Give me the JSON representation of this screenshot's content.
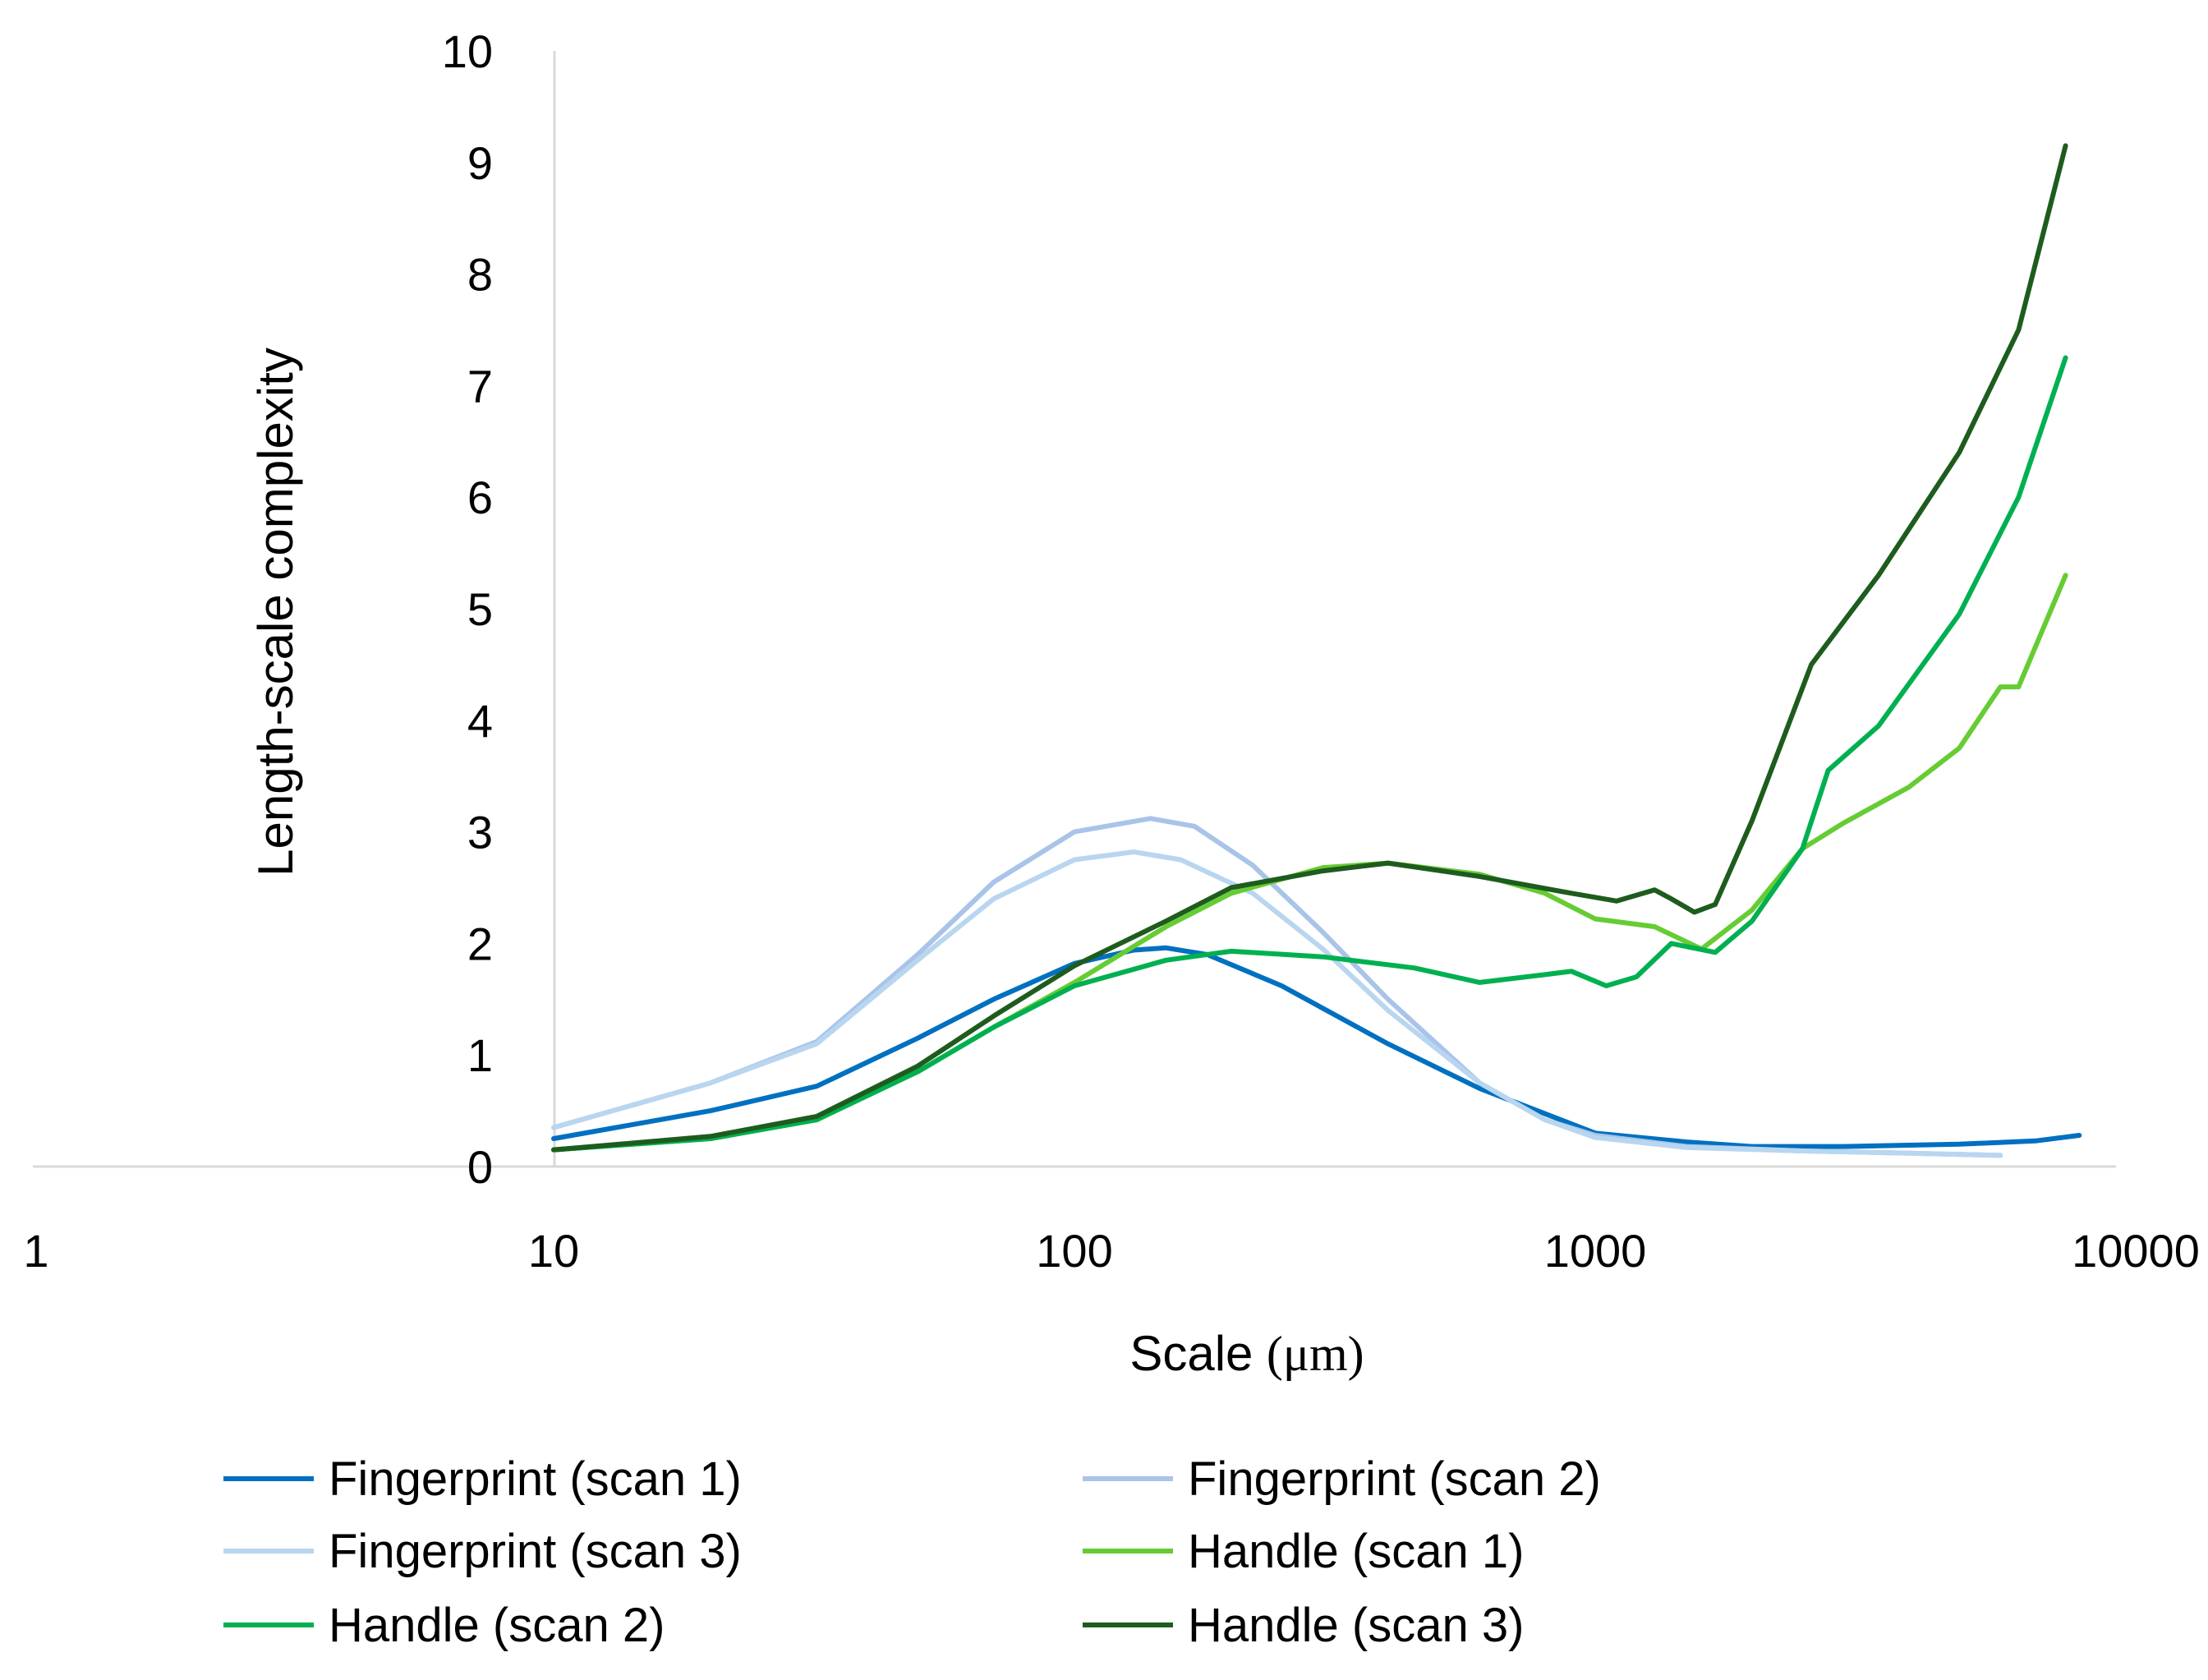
{
  "chart_data": {
    "type": "line",
    "title": "",
    "xlabel": "Scale",
    "xlabel_unit": "(μm)",
    "ylabel": "Length-scale complexity",
    "x_scale": "log",
    "xlim": [
      1,
      10000
    ],
    "ylim": [
      0,
      10
    ],
    "x_ticks": [
      1,
      10,
      100,
      1000,
      10000
    ],
    "x_tick_labels": [
      "1",
      "10",
      "100",
      "1000",
      "10000"
    ],
    "y_ticks": [
      0,
      1,
      2,
      3,
      4,
      5,
      6,
      7,
      8,
      9,
      10
    ],
    "y_tick_labels": [
      "0",
      "1",
      "2",
      "3",
      "4",
      "5",
      "6",
      "7",
      "8",
      "9",
      "10"
    ],
    "grid": false,
    "legend_position": "bottom",
    "series": [
      {
        "name": "Fingerprint (scan 1)",
        "color": "#0070c0",
        "points": [
          [
            10,
            0.25
          ],
          [
            20,
            0.5
          ],
          [
            32,
            0.72
          ],
          [
            50,
            1.15
          ],
          [
            70,
            1.5
          ],
          [
            100,
            1.82
          ],
          [
            130,
            1.94
          ],
          [
            150,
            1.96
          ],
          [
            180,
            1.9
          ],
          [
            250,
            1.62
          ],
          [
            400,
            1.1
          ],
          [
            600,
            0.7
          ],
          [
            1000,
            0.3
          ],
          [
            1500,
            0.22
          ],
          [
            2000,
            0.18
          ],
          [
            3000,
            0.18
          ],
          [
            5000,
            0.2
          ],
          [
            7000,
            0.23
          ],
          [
            8500,
            0.28
          ]
        ]
      },
      {
        "name": "Fingerprint (scan 2)",
        "color": "#a9c4e8",
        "points": [
          [
            10,
            0.35
          ],
          [
            20,
            0.75
          ],
          [
            32,
            1.12
          ],
          [
            50,
            1.9
          ],
          [
            70,
            2.55
          ],
          [
            100,
            3.0
          ],
          [
            140,
            3.12
          ],
          [
            170,
            3.05
          ],
          [
            220,
            2.7
          ],
          [
            300,
            2.1
          ],
          [
            400,
            1.5
          ],
          [
            600,
            0.75
          ],
          [
            800,
            0.42
          ],
          [
            1000,
            0.28
          ],
          [
            1500,
            0.18
          ],
          [
            2500,
            0.14
          ],
          [
            4000,
            0.12
          ],
          [
            6000,
            0.1
          ]
        ]
      },
      {
        "name": "Fingerprint (scan 3)",
        "color": "#b9d6f0",
        "points": [
          [
            10,
            0.35
          ],
          [
            20,
            0.75
          ],
          [
            32,
            1.1
          ],
          [
            50,
            1.85
          ],
          [
            70,
            2.4
          ],
          [
            100,
            2.75
          ],
          [
            130,
            2.82
          ],
          [
            160,
            2.75
          ],
          [
            220,
            2.45
          ],
          [
            300,
            1.95
          ],
          [
            400,
            1.4
          ],
          [
            600,
            0.75
          ],
          [
            800,
            0.42
          ],
          [
            1000,
            0.26
          ],
          [
            1500,
            0.17
          ],
          [
            2500,
            0.14
          ],
          [
            4000,
            0.12
          ],
          [
            6000,
            0.1
          ]
        ]
      },
      {
        "name": "Handle (scan 1)",
        "color": "#66cc33",
        "points": [
          [
            10,
            0.15
          ],
          [
            20,
            0.25
          ],
          [
            32,
            0.42
          ],
          [
            50,
            0.85
          ],
          [
            70,
            1.25
          ],
          [
            100,
            1.65
          ],
          [
            150,
            2.15
          ],
          [
            200,
            2.45
          ],
          [
            300,
            2.68
          ],
          [
            400,
            2.72
          ],
          [
            600,
            2.62
          ],
          [
            800,
            2.45
          ],
          [
            1000,
            2.22
          ],
          [
            1300,
            2.15
          ],
          [
            1600,
            1.95
          ],
          [
            2000,
            2.3
          ],
          [
            2500,
            2.85
          ],
          [
            3000,
            3.08
          ],
          [
            4000,
            3.4
          ],
          [
            5000,
            3.75
          ],
          [
            6000,
            4.3
          ],
          [
            6500,
            4.3
          ],
          [
            8000,
            5.3
          ]
        ]
      },
      {
        "name": "Handle (scan 2)",
        "color": "#00b050",
        "points": [
          [
            10,
            0.15
          ],
          [
            20,
            0.25
          ],
          [
            32,
            0.42
          ],
          [
            50,
            0.85
          ],
          [
            70,
            1.25
          ],
          [
            100,
            1.62
          ],
          [
            150,
            1.85
          ],
          [
            200,
            1.93
          ],
          [
            300,
            1.88
          ],
          [
            450,
            1.78
          ],
          [
            600,
            1.65
          ],
          [
            800,
            1.72
          ],
          [
            900,
            1.75
          ],
          [
            1050,
            1.62
          ],
          [
            1200,
            1.7
          ],
          [
            1400,
            2.0
          ],
          [
            1700,
            1.92
          ],
          [
            2000,
            2.2
          ],
          [
            2500,
            2.85
          ],
          [
            2800,
            3.55
          ],
          [
            3500,
            3.95
          ],
          [
            5000,
            4.95
          ],
          [
            6500,
            6.0
          ],
          [
            8000,
            7.25
          ]
        ]
      },
      {
        "name": "Handle (scan 3)",
        "color": "#1e5c1e",
        "points": [
          [
            10,
            0.15
          ],
          [
            20,
            0.27
          ],
          [
            32,
            0.45
          ],
          [
            50,
            0.9
          ],
          [
            70,
            1.35
          ],
          [
            100,
            1.8
          ],
          [
            150,
            2.2
          ],
          [
            200,
            2.5
          ],
          [
            300,
            2.65
          ],
          [
            400,
            2.72
          ],
          [
            600,
            2.6
          ],
          [
            900,
            2.45
          ],
          [
            1100,
            2.38
          ],
          [
            1300,
            2.48
          ],
          [
            1400,
            2.4
          ],
          [
            1550,
            2.28
          ],
          [
            1700,
            2.35
          ],
          [
            2000,
            3.1
          ],
          [
            2600,
            4.5
          ],
          [
            3500,
            5.3
          ],
          [
            5000,
            6.4
          ],
          [
            6500,
            7.5
          ],
          [
            8000,
            9.15
          ]
        ]
      }
    ]
  }
}
